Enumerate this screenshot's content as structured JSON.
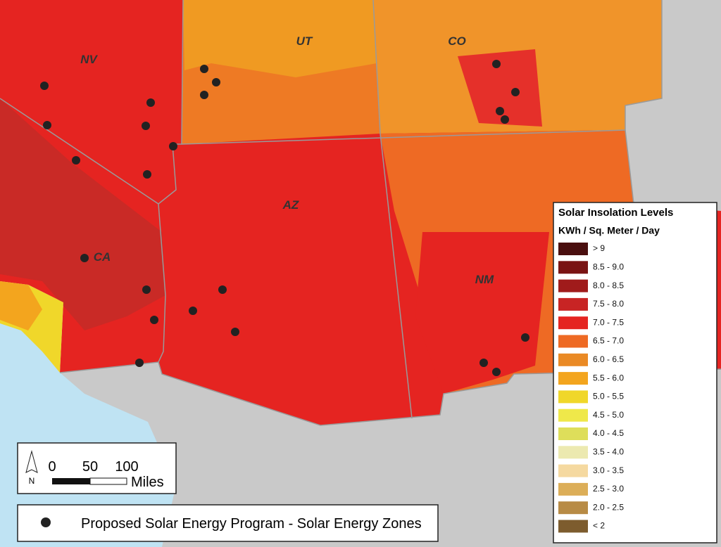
{
  "states": [
    {
      "label": "NV"
    },
    {
      "label": "UT"
    },
    {
      "label": "CO"
    },
    {
      "label": "AZ"
    },
    {
      "label": "CA"
    },
    {
      "label": "NM"
    }
  ],
  "legend": {
    "title": "Solar Insolation Levels",
    "subtitle": "KWh / Sq. Meter / Day",
    "items": [
      {
        "label": "> 9",
        "color": "#4a0f0f"
      },
      {
        "label": "8.5 - 9.0",
        "color": "#7a1414"
      },
      {
        "label": "8.0 - 8.5",
        "color": "#a01b1b"
      },
      {
        "label": "7.5 - 8.0",
        "color": "#c82424"
      },
      {
        "label": "7.0 - 7.5",
        "color": "#e52421"
      },
      {
        "label": "6.5 - 7.0",
        "color": "#ee6a24"
      },
      {
        "label": "6.0 - 6.5",
        "color": "#ea8a25"
      },
      {
        "label": "5.5 - 6.0",
        "color": "#f3a51e"
      },
      {
        "label": "5.0 - 5.5",
        "color": "#f0d72a"
      },
      {
        "label": "4.5 - 5.0",
        "color": "#efe84a"
      },
      {
        "label": "4.0 - 4.5",
        "color": "#dede5a"
      },
      {
        "label": "3.5 - 4.0",
        "color": "#ece9b0"
      },
      {
        "label": "3.0 - 3.5",
        "color": "#f5d9a0"
      },
      {
        "label": "2.5 - 3.0",
        "color": "#dcae58"
      },
      {
        "label": "2.0 - 2.5",
        "color": "#b88b45"
      },
      {
        "label": "< 2",
        "color": "#7d5c2e"
      }
    ]
  },
  "scale": {
    "north": "N",
    "ticks": [
      0,
      50,
      100
    ],
    "unit": "Miles"
  },
  "points_legend": "Proposed Solar Energy Program - Solar Energy Zones"
}
